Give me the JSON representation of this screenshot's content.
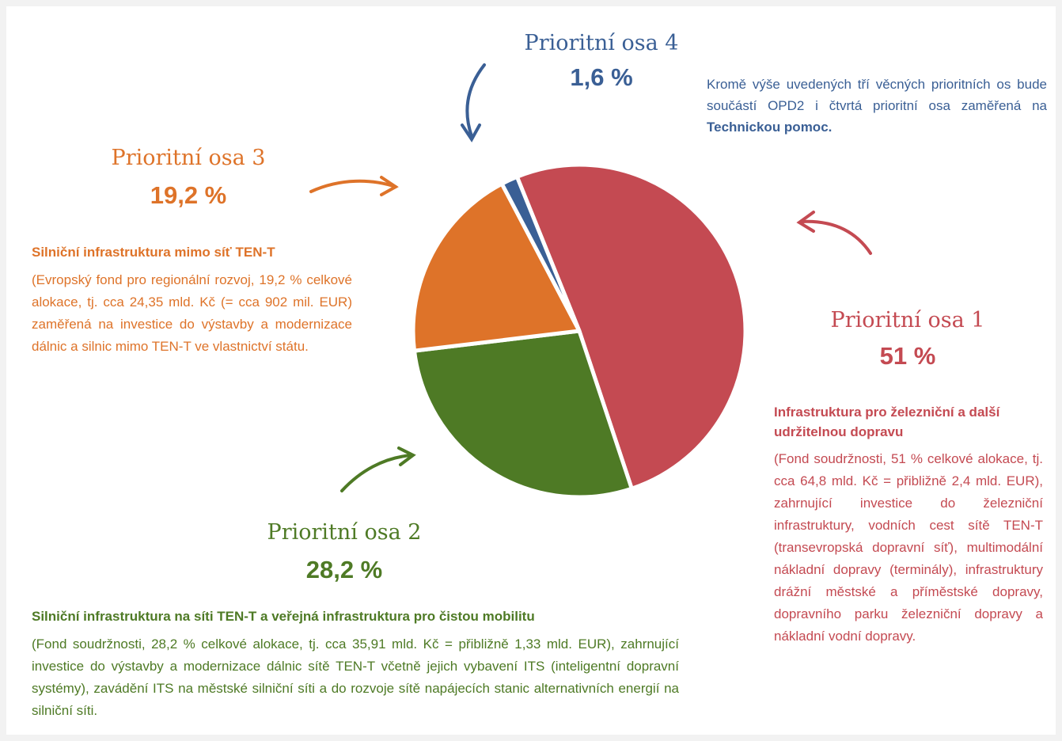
{
  "chart_data": {
    "type": "pie",
    "categories": [
      "Prioritní osa 1",
      "Prioritní osa 2",
      "Prioritní osa 3",
      "Prioritní osa 4"
    ],
    "values": [
      51,
      28.2,
      19.2,
      1.6
    ],
    "value_labels": [
      "51 %",
      "28,2 %",
      "19,2 %",
      "1,6 %"
    ],
    "colors": [
      "#c44a52",
      "#4e7a25",
      "#de7329",
      "#3a5f95"
    ],
    "details": [
      {
        "heading": "Infrastruktura pro železniční a další udržitelnou dopravu",
        "text": "(Fond soudržnosti, 51 % celkové alokace, tj. cca 64,8 mld. Kč = přibližně 2,4 mld. EUR), zahrnující investice do železniční infrastruktury, vodních cest sítě TEN-T (transevropská dopravní síť), multimodální nákladní dopravy (terminály), infrastruktury drážní městské a příměstské dopravy, dopravního parku železniční dopravy a nákladní vodní dopravy."
      },
      {
        "heading": "Silniční infrastruktura na síti TEN-T a veřejná infrastruktura pro čistou mobilitu",
        "text": "(Fond soudržnosti, 28,2 % celkové alokace, tj. cca 35,91 mld. Kč = přibližně 1,33 mld. EUR), zahrnující investice do výstavby a modernizace dálnic sítě TEN-T včetně jejich vybavení ITS (inteligentní dopravní systémy), zavádění ITS na městské silniční síti a do rozvoje sítě napájecích stanic alternativních energií na silniční síti."
      },
      {
        "heading": "Silniční infrastruktura mimo síť TEN-T",
        "text": "(Evropský fond pro regionální rozvoj, 19,2 % celkové alokace, tj. cca 24,35 mld. Kč (= cca 902 mil. EUR) zaměřená na investice do výstavby a modernizace dálnic a silnic mimo TEN-T ve vlastnictví státu."
      }
    ],
    "note": [
      "Kromě výše uvedených tří věcných prioritních os bude součástí OPD2 i čtvrtá prioritní osa zaměřená na ",
      "Technickou pomoc."
    ]
  }
}
